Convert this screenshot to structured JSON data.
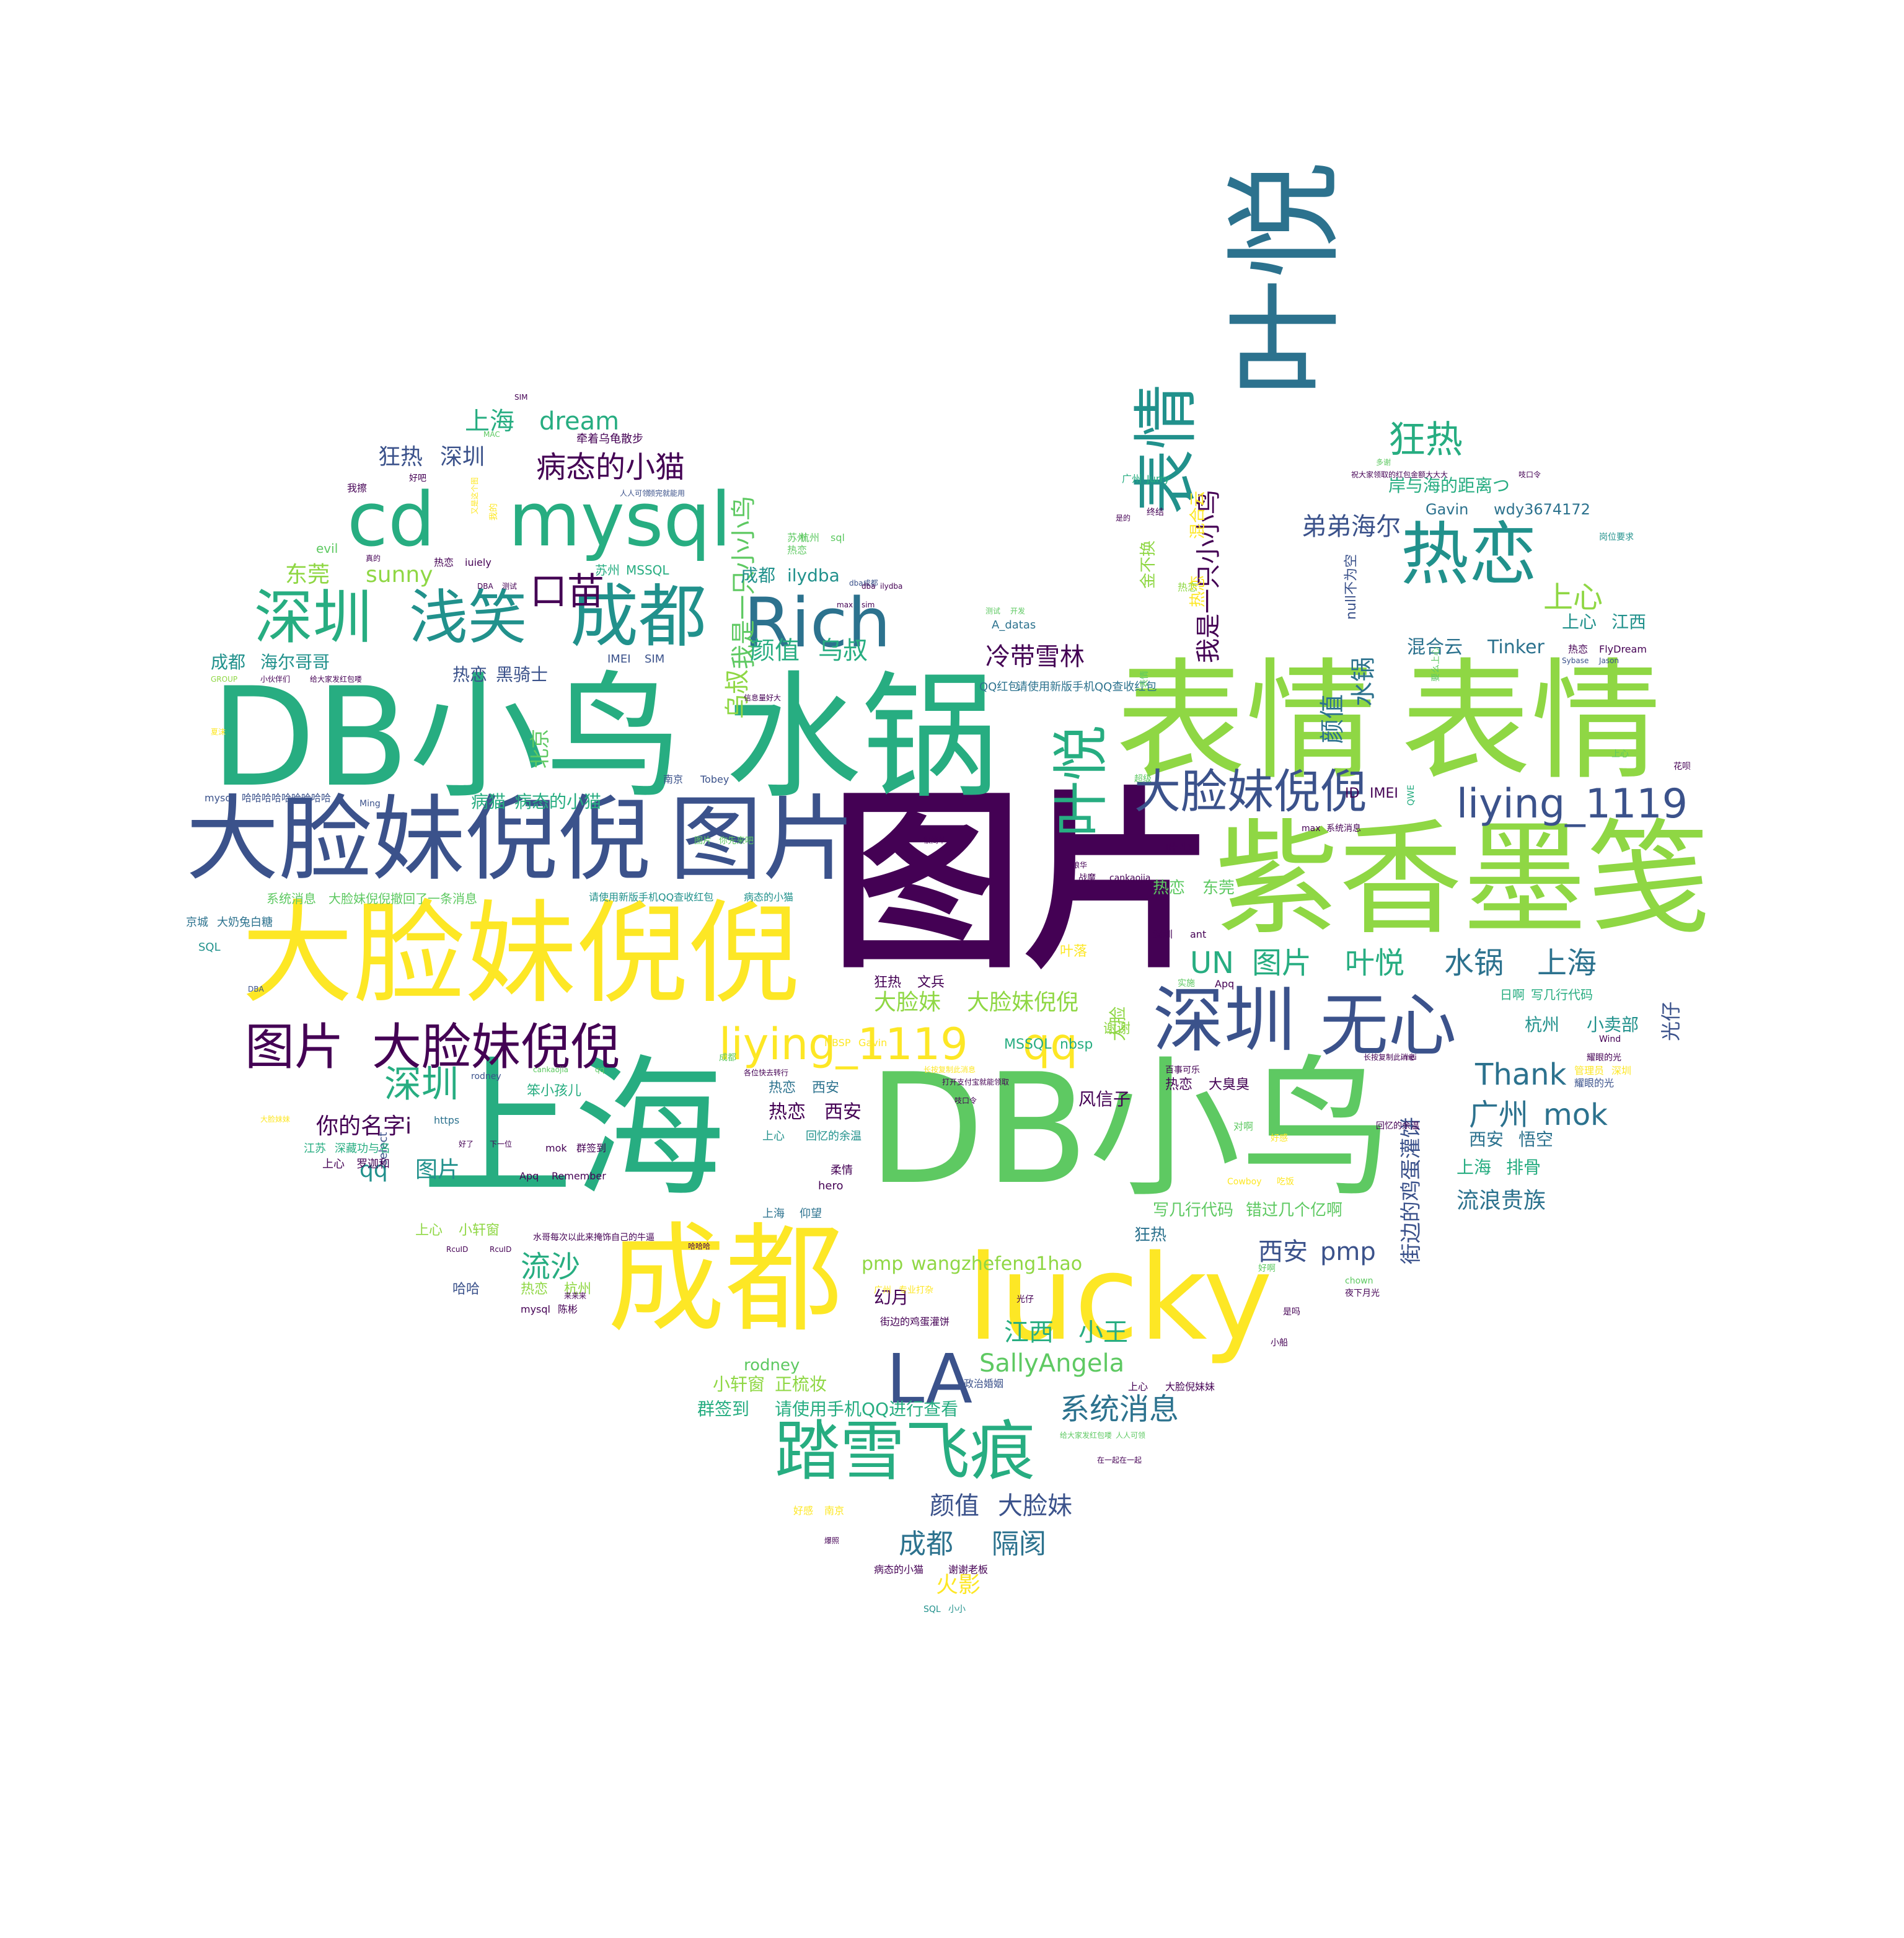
{
  "palette": {
    "dark_purple": "#440154",
    "indigo": "#3b528b",
    "teal_blue": "#2c728e",
    "teal": "#21918c",
    "green": "#27ad81",
    "bright_green": "#5ec962",
    "lime": "#8fd744",
    "yellow": "#fde725"
  },
  "words": [
    "图片",
    "上海",
    "DB小鸟",
    "DB小鸟",
    "水锅",
    "表情",
    "表情",
    "紫香墨笺",
    "大脸妹倪倪",
    "大脸妹倪倪",
    "图片",
    "成都",
    "lucky",
    "叶悦",
    "cd",
    "mysql",
    "深圳",
    "浅笑",
    "成都",
    "Rich",
    "热恋",
    "表情",
    "叶悦",
    "大脸妹倪倪",
    "liying_1119",
    "深圳",
    "无心",
    "图片",
    "大脸妹倪倪",
    "liying_1119",
    "qq",
    "LA",
    "踏雪飞痕",
    "UN",
    "图片",
    "叶悦",
    "水锅",
    "上海",
    "狂热",
    "上心",
    "上心",
    "江西",
    "混合云",
    "Tinker",
    "弟弟海尔",
    "岸与海的距离つ",
    "Gavin",
    "wdy3674172",
    "我是一只小小鸟",
    "我是一只小小鸟",
    "冷带雪林",
    "颜值",
    "水锅",
    "口苗",
    "病态的小猫",
    "上海",
    "dream",
    "狂热",
    "深圳",
    "东莞",
    "sunny",
    "颜值",
    "乌叔",
    "乌叔",
    "成都",
    "ilydba",
    "系统消息",
    "SallyAngela",
    "江西",
    "小王",
    "西安",
    "pmp",
    "广州",
    "mok",
    "Thank",
    "深圳",
    "你的名字i",
    "qq",
    "图片",
    "流沙",
    "流浪贵族",
    "街边的鸡蛋灌饼",
    "热恋",
    "西安",
    "大脸妹",
    "大脸妹倪倪",
    "杭州",
    "小卖部",
    "光仔",
    "北京",
    "病猫",
    "病态的小猫",
    "颜值",
    "大脸妹",
    "成都",
    "隔阂",
    "火影",
    "群签到",
    "请使用手机QQ进行查看",
    "小轩窗",
    "正梳妆",
    "rodney",
    "pmp",
    "wangzhefeng1hao",
    "幻月",
    "风信子",
    "西安",
    "悟空",
    "上海",
    "排骨",
    "热恋",
    "黑骑士",
    "成都",
    "海尔哥哥",
    "苏州",
    "MSSQL",
    "IMEI",
    "SIM",
    "狂热",
    "文兵",
    "大脸",
    "叶落",
    "叶少",
    "热恋",
    "东莞",
    "金不换",
    "热恋",
    "混合云",
    "null不为空",
    "ID",
    "IMEI",
    "热恋",
    "FlyDream",
    "QQ红包",
    "请使用新版手机QQ查收红包",
    "系统消息",
    "大脸妹倪倪撤回了一条消息",
    "请使用新版手机QQ查收红包",
    "病态的小猫",
    "京城",
    "大奶兔白糖",
    "SQL",
    "mysql",
    "哈哈哈哈哈哈哈哈哈",
    "select",
    "evil",
    "狂热",
    "写几行代码",
    "错过几个亿啊",
    "哈哈",
    "热恋",
    "杭州",
    "笨小孩儿",
    "https",
    "江苏",
    "深藏功与名",
    "上心",
    "罗迦和",
    "上心",
    "小轩窗",
    "Apq",
    "Remember",
    "mok",
    "群签到",
    "NBSP",
    "Gavin",
    "MSSQL",
    "nbsp",
    "热恋",
    "大臭臭",
    "日啊",
    "写几行代码",
    "管理员",
    "深圳",
    "Wind",
    "耀眼的光",
    "花呗",
    "dba成都",
    "Sybase",
    "Jason",
    "岗位要求",
    "我擦",
    "好吧",
    "SIM",
    "牵着乌龟散步",
    "MAC",
    "人人可领",
    "领完就能用",
    "广州",
    "Jurry",
    "对啊",
    "好感",
    "Cowboy",
    "吃饭",
    "广州",
    "专业打杂",
    "chown",
    "夜下月光",
    "是吗",
    "小船",
    "热恋",
    "西安",
    "上心",
    "回忆的余温",
    "上海",
    "仰望",
    "水哥每次以此来掩饰自己的牛逼",
    "RcuID",
    "RcuID",
    "mysql",
    "陈彬",
    "政治婚姻",
    "街边的鸡蛋灌饼",
    "上心",
    "大脸倪妹妹",
    "给大家发红包喽",
    "人人可领",
    "在一起在一起",
    "好感",
    "南京",
    "爆照",
    "病态的小猫",
    "谢谢老板",
    "SQL",
    "小小",
    "很简单",
    "琅华",
    "战魔",
    "cankaojia",
    "深圳",
    "ant",
    "南京",
    "Tobey",
    "图片",
    "你先来吧",
    "A_datas",
    "测试",
    "开发",
    "DBA",
    "测试",
    "dba",
    "ilydba",
    "max",
    "sim",
    "热恋",
    "iuiely",
    "真的",
    "GROUP",
    "小伙伴们",
    "给大家发红包喽",
    "信息量好大",
    "夏沫",
    "好了",
    "下一位",
    "各位快去转行",
    "百事可乐",
    "耀眼的光",
    "回忆的余温",
    "Apq",
    "DBA",
    "cankaojia",
    "qq",
    "rodney",
    "大脸妹妹",
    "谢谢",
    "来来来",
    "哈哈哈",
    "hero",
    "柔情",
    "光仔",
    "长按复制此消息",
    "打开支付宝就能领取",
    "吱口令",
    "长按复制此消息",
    "imei",
    "max",
    "系统消息",
    "QWE",
    "Ming",
    "又是这个图",
    "我的",
    "终结",
    "是的",
    "热恋",
    "苏州",
    "热恋",
    "杭州",
    "sql",
    "祝大家领取的红包金额大大大",
    "吱口令",
    "多谢",
    "上心",
    "要么上心",
    "表情",
    "超级",
    "实施",
    "成都",
    "好啊"
  ]
}
